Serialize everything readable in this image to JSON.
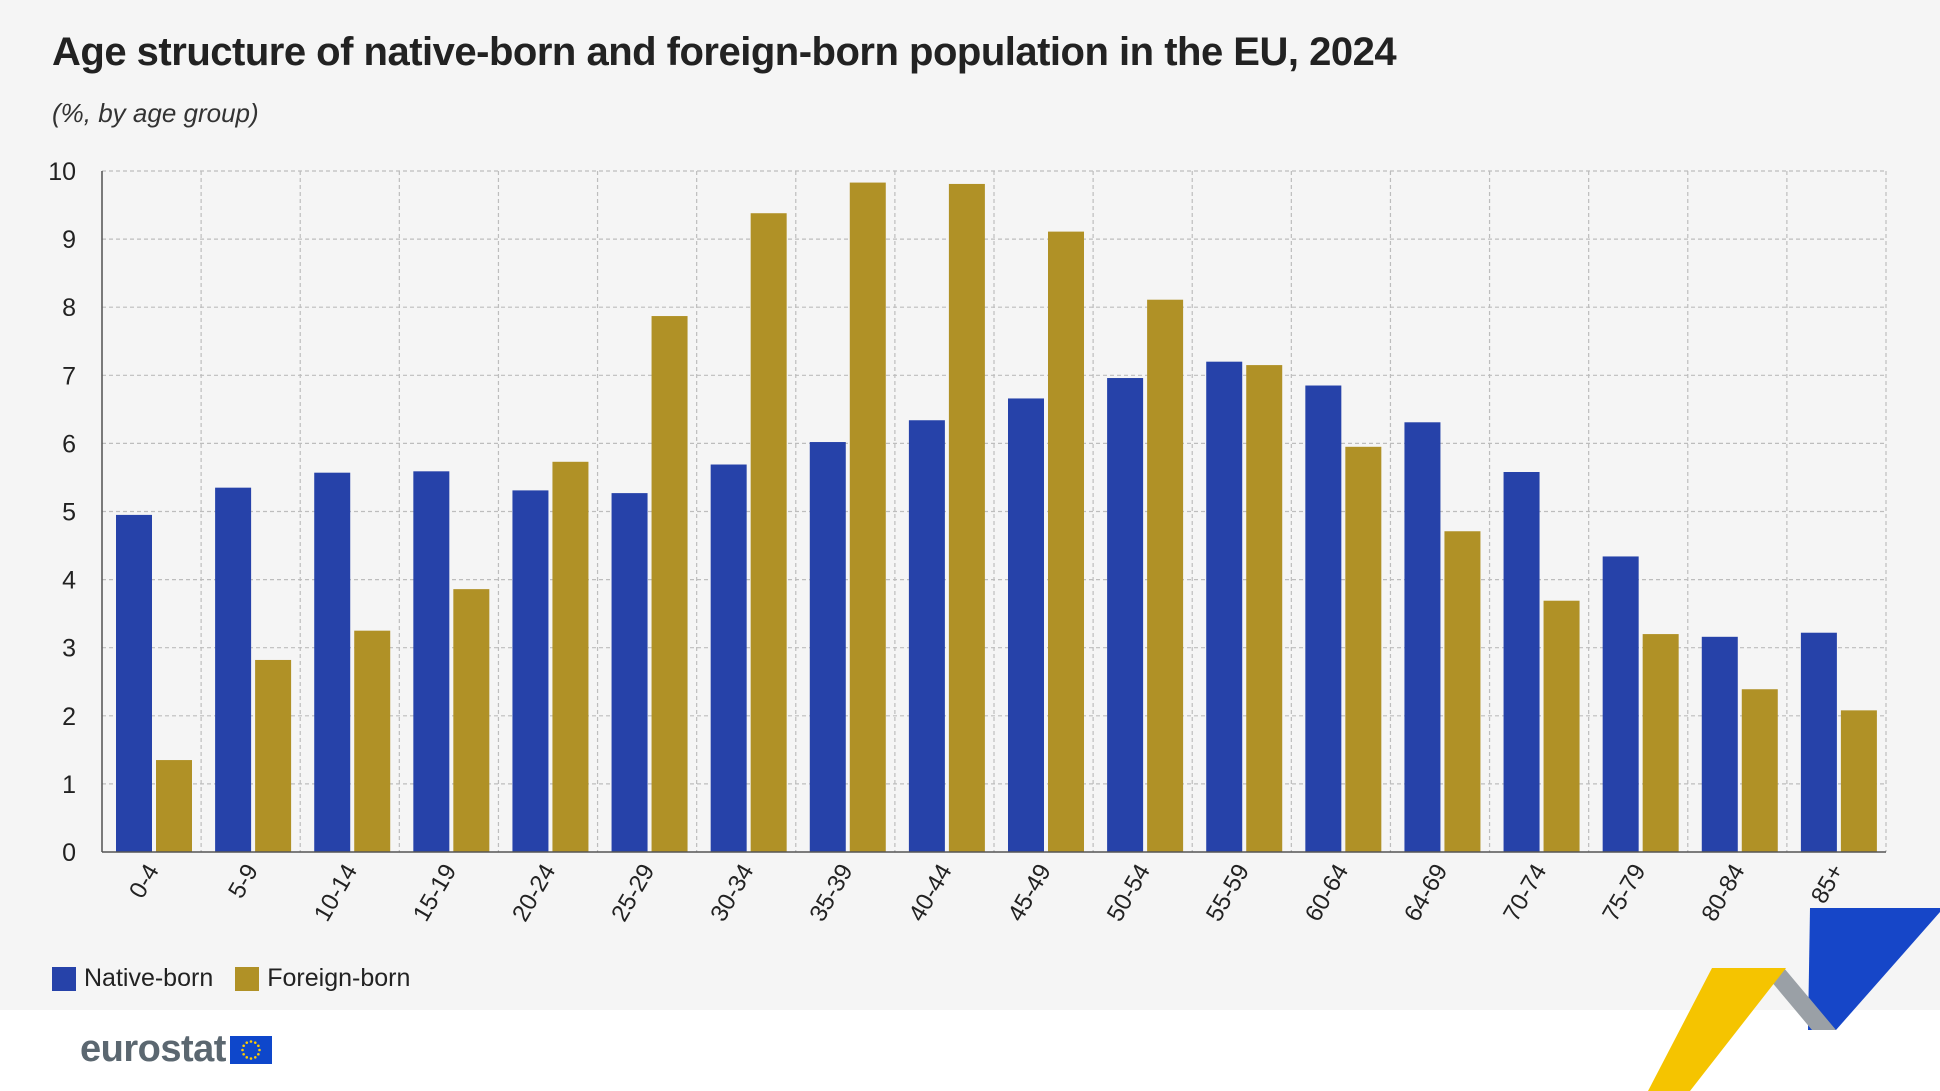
{
  "header": {
    "title": "Age structure of native-born and foreign-born population in the EU, 2024",
    "subtitle": "(%, by age group)"
  },
  "footer": {
    "logo_text": "eurostat"
  },
  "colors": {
    "native": "#2642a9",
    "foreign": "#b09126",
    "grid": "#bdbdbd",
    "axis": "#555555"
  },
  "chart_data": {
    "type": "bar",
    "categories": [
      "0-4",
      "5-9",
      "10-14",
      "15-19",
      "20-24",
      "25-29",
      "30-34",
      "35-39",
      "40-44",
      "45-49",
      "50-54",
      "55-59",
      "60-64",
      "64-69",
      "70-74",
      "75-79",
      "80-84",
      "85+"
    ],
    "series": [
      {
        "name": "Native-born",
        "values": [
          4.95,
          5.35,
          5.57,
          5.59,
          5.31,
          5.27,
          5.69,
          6.02,
          6.34,
          6.66,
          6.96,
          7.2,
          6.85,
          6.31,
          5.58,
          4.34,
          3.16,
          3.22
        ]
      },
      {
        "name": "Foreign-born",
        "values": [
          1.35,
          2.82,
          3.25,
          3.86,
          5.73,
          7.87,
          9.38,
          9.83,
          9.81,
          9.11,
          8.11,
          7.15,
          5.95,
          4.71,
          3.69,
          3.2,
          2.39,
          2.08
        ]
      }
    ],
    "yticks": [
      0,
      1,
      2,
      3,
      4,
      5,
      6,
      7,
      8,
      9,
      10
    ],
    "ylim": [
      0,
      10
    ],
    "grid": true,
    "legend_position": "bottom-left"
  }
}
